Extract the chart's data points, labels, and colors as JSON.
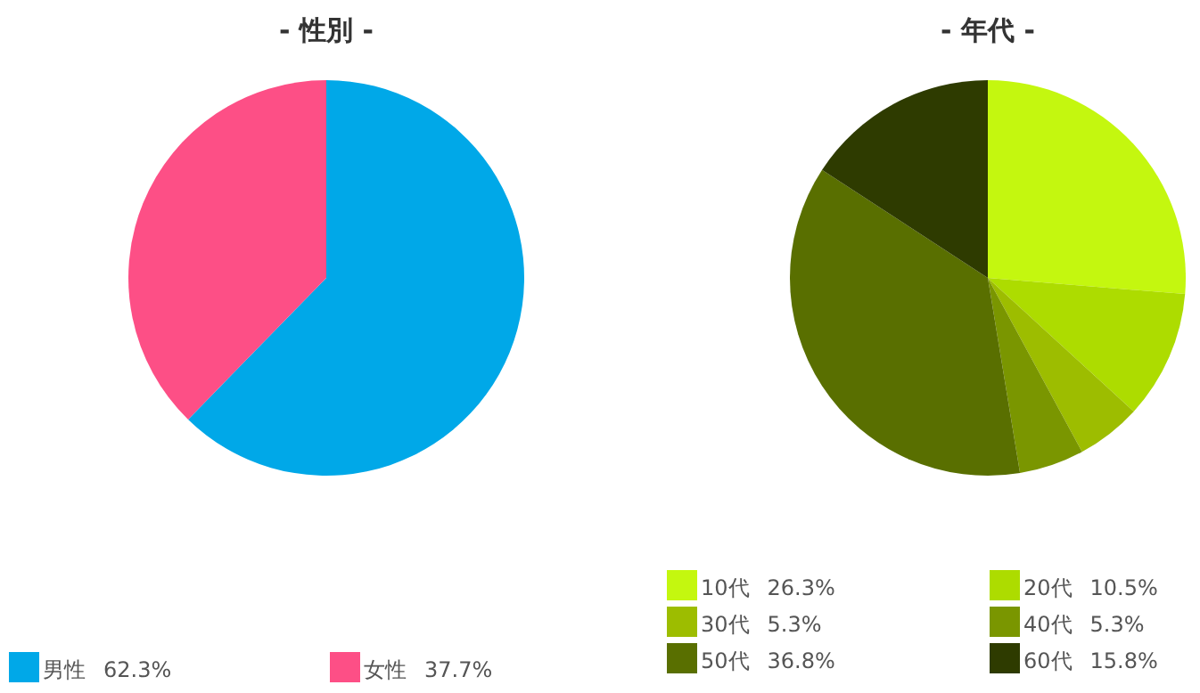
{
  "chart_data": [
    {
      "type": "pie",
      "title": "- 性別 -",
      "categories": [
        "男性",
        "女性"
      ],
      "values": [
        62.3,
        37.7
      ],
      "value_labels": [
        "62.3%",
        "37.7%"
      ],
      "colors": [
        "#00a8e8",
        "#fd4f86"
      ],
      "legend": "bottom"
    },
    {
      "type": "pie",
      "title": "- 年代 -",
      "categories": [
        "10代",
        "20代",
        "30代",
        "40代",
        "50代",
        "60代"
      ],
      "values": [
        26.3,
        10.5,
        5.3,
        5.3,
        36.8,
        15.8
      ],
      "value_labels": [
        "26.3%",
        "10.5%",
        "5.3%",
        "5.3%",
        "36.8%",
        "15.8%"
      ],
      "colors": [
        "#c4f70f",
        "#addc00",
        "#9dbd00",
        "#7a9600",
        "#596f00",
        "#2e3b00"
      ],
      "legend": "bottom"
    }
  ]
}
